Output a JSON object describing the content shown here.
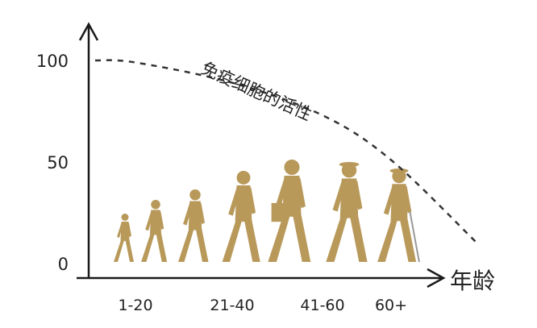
{
  "chart_data": {
    "type": "line",
    "title": "",
    "xlabel": "年龄",
    "ylabel": "",
    "categories": [
      "1-20",
      "21-40",
      "41-60",
      "60+"
    ],
    "yticks": [
      0,
      50,
      100
    ],
    "ylim": [
      0,
      100
    ],
    "grid": false,
    "series": [
      {
        "name": "免疫细胞的活性",
        "values": [
          99,
          89,
          73,
          51
        ],
        "style": "dashed"
      }
    ],
    "figures": [
      "child",
      "boy",
      "teen",
      "young-adult",
      "adult",
      "middle-aged",
      "elderly-with-cane"
    ],
    "colors": {
      "figure": "#b8995a",
      "axis": "#1a1a1a",
      "curve": "#333333"
    }
  }
}
